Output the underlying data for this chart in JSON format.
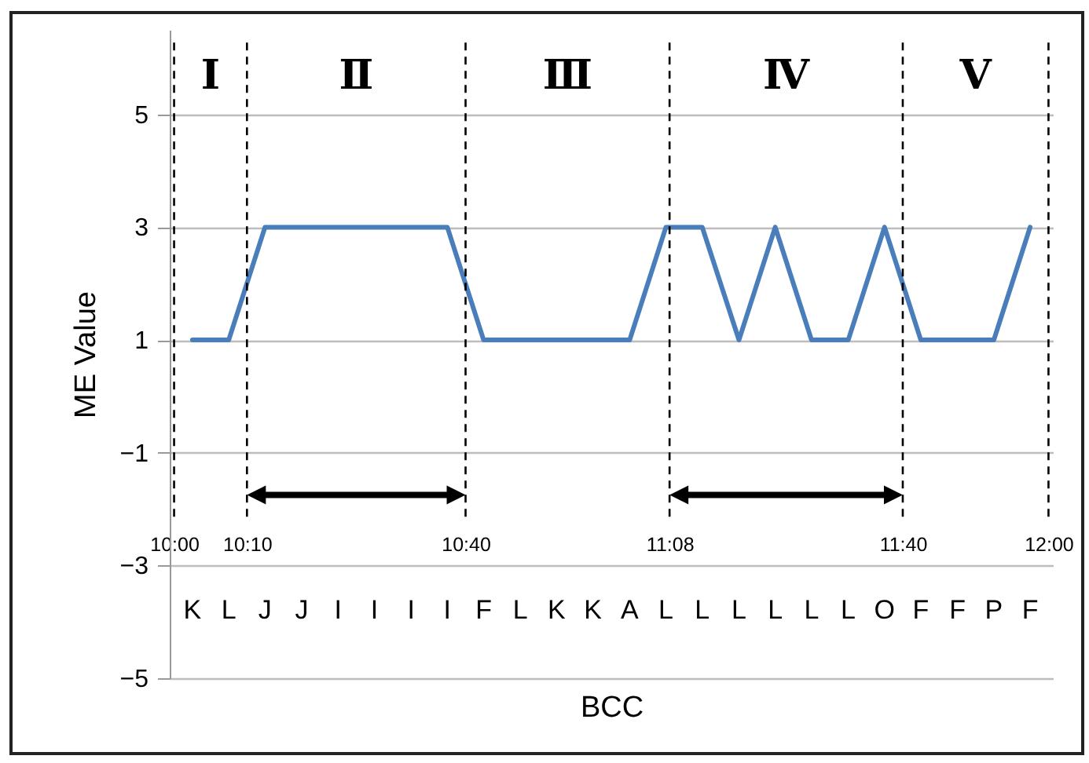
{
  "chart_data": {
    "type": "line",
    "xlabel": "BCC",
    "ylabel": "ME Value",
    "x": [
      10.042,
      10.125,
      10.208,
      10.292,
      10.375,
      10.458,
      10.542,
      10.625,
      10.708,
      10.792,
      10.875,
      10.958,
      11.042,
      11.125,
      11.208,
      11.292,
      11.375,
      11.458,
      11.542,
      11.625,
      11.708,
      11.792,
      11.875,
      11.958
    ],
    "series": [
      {
        "color": "#4a7ebb",
        "values": [
          1,
          1,
          3,
          3,
          3,
          3,
          3,
          3,
          1,
          1,
          1,
          1,
          1,
          3,
          3,
          1,
          3,
          1,
          1,
          3,
          1,
          1,
          1,
          3
        ]
      }
    ],
    "xlim": [
      9.99,
      12.01
    ],
    "xticks": [
      {
        "value": 10,
        "label": "10:00"
      },
      {
        "value": 10.1667,
        "label": "10:10"
      },
      {
        "value": 10.6667,
        "label": "10:40"
      },
      {
        "value": 11.1333,
        "label": "11:08"
      },
      {
        "value": 11.6667,
        "label": "11:40"
      },
      {
        "value": 12,
        "label": "12:00"
      }
    ],
    "ylim": [
      -5,
      6.5
    ],
    "yticks": [
      -5,
      -3,
      -1,
      1,
      3,
      5
    ],
    "grid": "y",
    "marker": "none",
    "line_style": "solid",
    "ref_lines": [
      {
        "axis": "x",
        "value": 10,
        "line_style": "dashed"
      },
      {
        "axis": "x",
        "value": 10.1667,
        "line_style": "dashed"
      },
      {
        "axis": "x",
        "value": 10.6667,
        "line_style": "dashed"
      },
      {
        "axis": "x",
        "value": 11.1333,
        "line_style": "dashed"
      },
      {
        "axis": "x",
        "value": 11.6667,
        "line_style": "dashed"
      },
      {
        "axis": "x",
        "value": 12,
        "line_style": "dashed"
      }
    ],
    "annotations": [
      "Ⅰ",
      "Ⅱ",
      "Ⅲ",
      "Ⅳ",
      "Ⅴ",
      "K",
      "L",
      "J",
      "J",
      "I",
      "I",
      "I",
      "I",
      "F",
      "L",
      "K",
      "K",
      "A",
      "L",
      "L",
      "L",
      "L",
      "L",
      "L",
      "O",
      "F",
      "F",
      "P",
      "F"
    ]
  }
}
